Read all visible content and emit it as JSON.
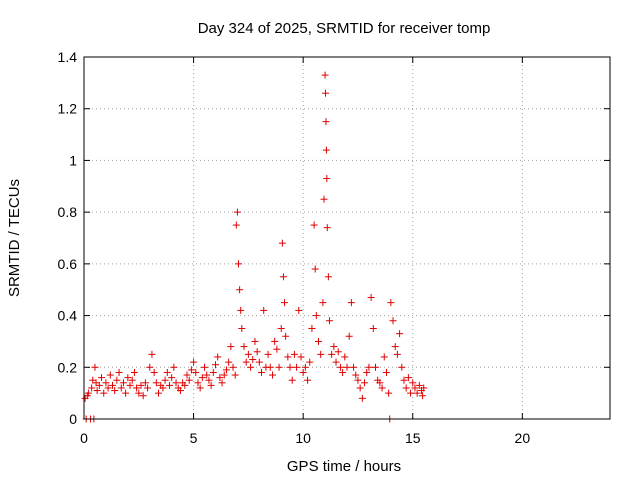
{
  "chart_data": {
    "type": "scatter",
    "title": "Day 324 of 2025, SRMTID for receiver tomp",
    "xlabel": "GPS time / hours",
    "ylabel": "SRMTID / TECUs",
    "xlim": [
      0,
      24
    ],
    "ylim": [
      0,
      1.4
    ],
    "x_ticks": [
      0,
      5,
      10,
      15,
      20
    ],
    "x_tick_labels": [
      "0",
      "5",
      "10",
      "15",
      "20"
    ],
    "y_ticks": [
      0,
      0.2,
      0.4,
      0.6,
      0.8,
      1,
      1.2,
      1.4
    ],
    "y_tick_labels": [
      "0",
      "0.2",
      "0.4",
      "0.6",
      "0.8",
      "1",
      "1.2",
      "1.4"
    ],
    "grid": true,
    "marker": "+",
    "color": "#e00000",
    "series": [
      {
        "name": "SRMTID",
        "points": [
          [
            0.05,
            0.08
          ],
          [
            0.1,
            0.0
          ],
          [
            0.15,
            0.09
          ],
          [
            0.2,
            0.1
          ],
          [
            0.3,
            0.0
          ],
          [
            0.35,
            0.12
          ],
          [
            0.4,
            0.15
          ],
          [
            0.45,
            0.0
          ],
          [
            0.5,
            0.2
          ],
          [
            0.55,
            0.14
          ],
          [
            0.6,
            0.11
          ],
          [
            0.7,
            0.13
          ],
          [
            0.8,
            0.16
          ],
          [
            0.9,
            0.1
          ],
          [
            1.0,
            0.14
          ],
          [
            1.1,
            0.12
          ],
          [
            1.2,
            0.17
          ],
          [
            1.3,
            0.13
          ],
          [
            1.4,
            0.11
          ],
          [
            1.5,
            0.15
          ],
          [
            1.6,
            0.18
          ],
          [
            1.7,
            0.12
          ],
          [
            1.8,
            0.14
          ],
          [
            1.9,
            0.1
          ],
          [
            2.0,
            0.16
          ],
          [
            2.1,
            0.13
          ],
          [
            2.2,
            0.15
          ],
          [
            2.3,
            0.18
          ],
          [
            2.4,
            0.12
          ],
          [
            2.5,
            0.1
          ],
          [
            2.6,
            0.13
          ],
          [
            2.7,
            0.09
          ],
          [
            2.8,
            0.14
          ],
          [
            2.9,
            0.12
          ],
          [
            3.0,
            0.2
          ],
          [
            3.1,
            0.25
          ],
          [
            3.2,
            0.18
          ],
          [
            3.3,
            0.14
          ],
          [
            3.4,
            0.1
          ],
          [
            3.5,
            0.13
          ],
          [
            3.6,
            0.12
          ],
          [
            3.7,
            0.15
          ],
          [
            3.8,
            0.18
          ],
          [
            3.9,
            0.13
          ],
          [
            4.0,
            0.16
          ],
          [
            4.1,
            0.2
          ],
          [
            4.2,
            0.14
          ],
          [
            4.3,
            0.12
          ],
          [
            4.4,
            0.11
          ],
          [
            4.5,
            0.14
          ],
          [
            4.6,
            0.13
          ],
          [
            4.7,
            0.17
          ],
          [
            4.8,
            0.15
          ],
          [
            4.9,
            0.19
          ],
          [
            5.0,
            0.22
          ],
          [
            5.1,
            0.18
          ],
          [
            5.2,
            0.14
          ],
          [
            5.3,
            0.12
          ],
          [
            5.4,
            0.16
          ],
          [
            5.5,
            0.2
          ],
          [
            5.6,
            0.17
          ],
          [
            5.7,
            0.15
          ],
          [
            5.8,
            0.13
          ],
          [
            5.9,
            0.18
          ],
          [
            6.0,
            0.21
          ],
          [
            6.1,
            0.24
          ],
          [
            6.2,
            0.16
          ],
          [
            6.3,
            0.14
          ],
          [
            6.4,
            0.17
          ],
          [
            6.5,
            0.19
          ],
          [
            6.6,
            0.22
          ],
          [
            6.7,
            0.28
          ],
          [
            6.8,
            0.2
          ],
          [
            6.9,
            0.17
          ],
          [
            6.95,
            0.75
          ],
          [
            7.0,
            0.8
          ],
          [
            7.05,
            0.6
          ],
          [
            7.1,
            0.5
          ],
          [
            7.15,
            0.42
          ],
          [
            7.2,
            0.35
          ],
          [
            7.3,
            0.28
          ],
          [
            7.4,
            0.22
          ],
          [
            7.5,
            0.25
          ],
          [
            7.6,
            0.2
          ],
          [
            7.7,
            0.23
          ],
          [
            7.8,
            0.3
          ],
          [
            7.9,
            0.26
          ],
          [
            8.0,
            0.22
          ],
          [
            8.1,
            0.18
          ],
          [
            8.2,
            0.42
          ],
          [
            8.3,
            0.2
          ],
          [
            8.4,
            0.25
          ],
          [
            8.5,
            0.2
          ],
          [
            8.6,
            0.17
          ],
          [
            8.7,
            0.3
          ],
          [
            8.8,
            0.27
          ],
          [
            8.9,
            0.2
          ],
          [
            9.0,
            0.35
          ],
          [
            9.05,
            0.68
          ],
          [
            9.1,
            0.55
          ],
          [
            9.15,
            0.45
          ],
          [
            9.2,
            0.32
          ],
          [
            9.3,
            0.24
          ],
          [
            9.4,
            0.2
          ],
          [
            9.5,
            0.15
          ],
          [
            9.6,
            0.25
          ],
          [
            9.7,
            0.2
          ],
          [
            9.8,
            0.42
          ],
          [
            9.9,
            0.24
          ],
          [
            10.0,
            0.18
          ],
          [
            10.1,
            0.2
          ],
          [
            10.2,
            0.15
          ],
          [
            10.3,
            0.22
          ],
          [
            10.4,
            0.35
          ],
          [
            10.5,
            0.75
          ],
          [
            10.55,
            0.58
          ],
          [
            10.6,
            0.4
          ],
          [
            10.7,
            0.3
          ],
          [
            10.8,
            0.25
          ],
          [
            10.9,
            0.45
          ],
          [
            10.95,
            0.85
          ],
          [
            11.0,
            1.33
          ],
          [
            11.02,
            1.26
          ],
          [
            11.04,
            1.15
          ],
          [
            11.06,
            1.04
          ],
          [
            11.08,
            0.93
          ],
          [
            11.1,
            0.74
          ],
          [
            11.15,
            0.55
          ],
          [
            11.2,
            0.38
          ],
          [
            11.3,
            0.25
          ],
          [
            11.4,
            0.28
          ],
          [
            11.5,
            0.22
          ],
          [
            11.6,
            0.26
          ],
          [
            11.7,
            0.2
          ],
          [
            11.8,
            0.18
          ],
          [
            11.9,
            0.24
          ],
          [
            12.0,
            0.2
          ],
          [
            12.1,
            0.32
          ],
          [
            12.2,
            0.45
          ],
          [
            12.3,
            0.2
          ],
          [
            12.4,
            0.17
          ],
          [
            12.5,
            0.15
          ],
          [
            12.6,
            0.12
          ],
          [
            12.7,
            0.08
          ],
          [
            12.8,
            0.14
          ],
          [
            12.9,
            0.18
          ],
          [
            13.0,
            0.2
          ],
          [
            13.1,
            0.47
          ],
          [
            13.2,
            0.35
          ],
          [
            13.3,
            0.2
          ],
          [
            13.4,
            0.15
          ],
          [
            13.5,
            0.14
          ],
          [
            13.6,
            0.12
          ],
          [
            13.7,
            0.24
          ],
          [
            13.8,
            0.18
          ],
          [
            13.9,
            0.1
          ],
          [
            13.95,
            0.0
          ],
          [
            14.0,
            0.45
          ],
          [
            14.1,
            0.38
          ],
          [
            14.2,
            0.28
          ],
          [
            14.3,
            0.25
          ],
          [
            14.4,
            0.33
          ],
          [
            14.5,
            0.2
          ],
          [
            14.6,
            0.15
          ],
          [
            14.7,
            0.12
          ],
          [
            14.8,
            0.16
          ],
          [
            14.9,
            0.1
          ],
          [
            15.0,
            0.14
          ],
          [
            15.1,
            0.12
          ],
          [
            15.2,
            0.1
          ],
          [
            15.3,
            0.13
          ],
          [
            15.4,
            0.11
          ],
          [
            15.45,
            0.09
          ],
          [
            15.5,
            0.12
          ]
        ]
      }
    ]
  }
}
